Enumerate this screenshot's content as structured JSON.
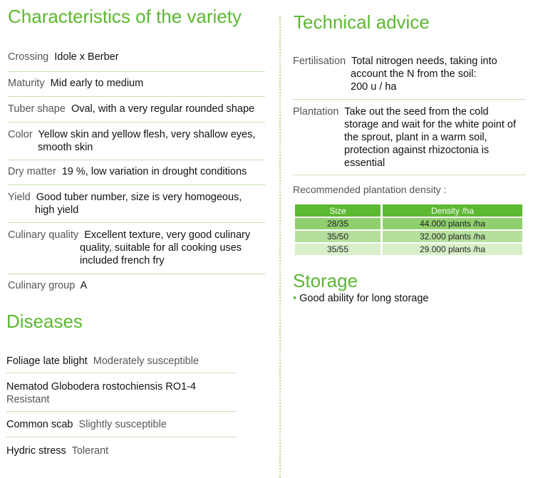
{
  "characteristics": {
    "heading": "Characteristics of the variety",
    "rows": [
      {
        "label": "Crossing",
        "lines": [
          "Idole x Berber"
        ]
      },
      {
        "label": "Maturity",
        "lines": [
          "Mid early to medium"
        ]
      },
      {
        "label": "Tuber shape",
        "lines": [
          "Oval, with a very regular rounded shape"
        ]
      },
      {
        "label": "Color",
        "lines": [
          "Yellow skin and yellow flesh, very shallow eyes,",
          "smooth skin"
        ]
      },
      {
        "label": "Dry matter",
        "lines": [
          "19 %, low variation in drought conditions"
        ]
      },
      {
        "label": "Yield",
        "lines": [
          "Good tuber number, size is very homogeous,",
          "high yield"
        ]
      },
      {
        "label": "Culinary quality",
        "lines": [
          "Excellent texture, very good culinary",
          "quality, suitable for all cooking uses",
          "included french fry"
        ]
      },
      {
        "label": "Culinary group",
        "lines": [
          "A"
        ]
      }
    ]
  },
  "diseases": {
    "heading": "Diseases",
    "rows": [
      {
        "name": "Foliage late blight",
        "rating": "Moderately susceptible"
      },
      {
        "name": "Nematod Globodera rostochiensis RO1-4",
        "rating": "Resistant"
      },
      {
        "name": "Common scab",
        "rating": "Slightly susceptible"
      },
      {
        "name": "Hydric stress",
        "rating": "Tolerant"
      }
    ]
  },
  "technical": {
    "heading": "Technical advice",
    "rows": [
      {
        "label": "Fertilisation",
        "lines": [
          "Total nitrogen needs, taking into",
          "account the N from the soil:",
          "200 u / ha"
        ]
      },
      {
        "label": "Plantation",
        "lines": [
          "Take out the seed from the cold",
          "storage and wait for the white point of",
          "the sprout, plant in a warm soil,",
          "protection against rhizoctonia is",
          "essential"
        ]
      }
    ],
    "density_label": "Recommended plantation density :",
    "density_table": {
      "headers": [
        "Size",
        "Density /ha"
      ],
      "rows": [
        [
          "28/35",
          "44.000 plants /ha"
        ],
        [
          "35/50",
          "32.000 plants /ha"
        ],
        [
          "35/55",
          "29.000 plants /ha"
        ]
      ]
    }
  },
  "storage": {
    "heading": "Storage",
    "bullet": "•",
    "items": [
      "Good ability for long storage"
    ]
  },
  "colors": {
    "accent": "#5cb831",
    "rule": "#c6dfb4"
  }
}
